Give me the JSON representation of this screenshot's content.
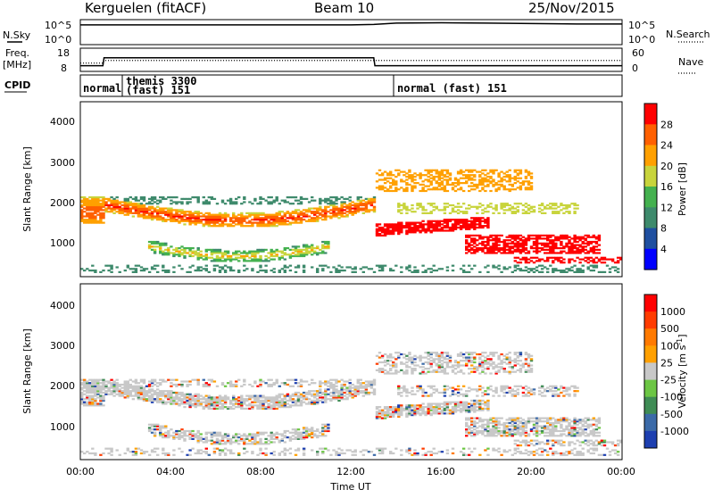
{
  "header": {
    "station": "Kerguelen (fitACF)",
    "beam": "Beam 10",
    "date": "25/Nov/2015"
  },
  "top_panels": {
    "nsky_label": "N.Sky",
    "nsearch_label": "N.Search",
    "freq_label_line1": "Freq.",
    "freq_label_line2": "[MHz]",
    "nave_label": "Nave",
    "cpid_label": "CPID",
    "noise_left_ticks": [
      "10^5",
      "10^0"
    ],
    "noise_right_ticks": [
      "10^5",
      "10^0"
    ],
    "freq_left_ticks": [
      "18",
      "8"
    ],
    "freq_right_ticks": [
      "60",
      "0"
    ],
    "cpid_entries": [
      {
        "text_line1": "normal",
        "text_line2": ""
      },
      {
        "text_line1": "themis 3300",
        "text_line2": "(fast) 151"
      },
      {
        "text_line1": "normal (fast) 151",
        "text_line2": ""
      }
    ]
  },
  "chart_data": [
    {
      "type": "line",
      "title": "N.Sky / N.Search",
      "x": [
        0,
        1,
        2,
        4,
        6,
        8,
        10,
        12,
        13,
        14,
        16,
        18,
        20,
        22,
        24
      ],
      "series": [
        {
          "name": "N.Sky",
          "values": [
            4.2,
            4.2,
            4.2,
            4.2,
            4.2,
            4.2,
            4.2,
            4.2,
            4.3,
            4.6,
            4.7,
            4.6,
            4.5,
            4.4,
            4.4
          ]
        }
      ]
    },
    {
      "type": "line",
      "title": "Freq / Nave",
      "x": [
        0,
        1,
        1.05,
        13,
        13.05,
        24
      ],
      "series": [
        {
          "name": "Freq.",
          "values": [
            10,
            10,
            14,
            14,
            10,
            10
          ]
        },
        {
          "name": "Nave",
          "values": [
            20,
            20,
            28,
            28,
            28,
            28
          ]
        }
      ]
    },
    {
      "type": "heatmap",
      "title": "Power",
      "xlabel": "",
      "ylabel": "Slant Range [km]",
      "xlim": [
        0,
        24
      ],
      "ylim": [
        200,
        4600
      ],
      "colorbar_label": "Power [dB]",
      "colorbar_ticks": [
        "28",
        "24",
        "20",
        "16",
        "12",
        "8",
        "4"
      ],
      "colors": [
        "#0000ff",
        "#1f4fa0",
        "#3e8a6c",
        "#44b14f",
        "#c8d43c",
        "#ffa000",
        "#ff6000",
        "#ff0000"
      ]
    },
    {
      "type": "heatmap",
      "title": "Velocity",
      "xlabel": "Time UT",
      "ylabel": "Slant Range [km]",
      "xlim": [
        0,
        24
      ],
      "ylim": [
        200,
        4600
      ],
      "colorbar_label": "Velocity [m s-1]",
      "colorbar_ticks": [
        "1000",
        "500",
        "100",
        "25",
        "-25",
        "-100",
        "-500",
        "-1000"
      ],
      "colors": [
        "#1d3fb0",
        "#3b6aa8",
        "#3f8c55",
        "#6cc644",
        "#c8c8c8",
        "#ffa000",
        "#ff7a00",
        "#ff3c00",
        "#ff0000"
      ]
    }
  ],
  "axes": {
    "y_ticks": [
      "4000",
      "3000",
      "2000",
      "1000"
    ],
    "x_ticks": [
      "00:00",
      "04:00",
      "08:00",
      "12:00",
      "16:00",
      "20:00",
      "00:00"
    ],
    "xlabel": "Time UT",
    "ylabel": "Slant Range [km]",
    "power_cb_label": "Power [dB]",
    "vel_cb_label": "Velocity [m s",
    "vel_cb_sup": "-1",
    "vel_cb_close": "]"
  }
}
